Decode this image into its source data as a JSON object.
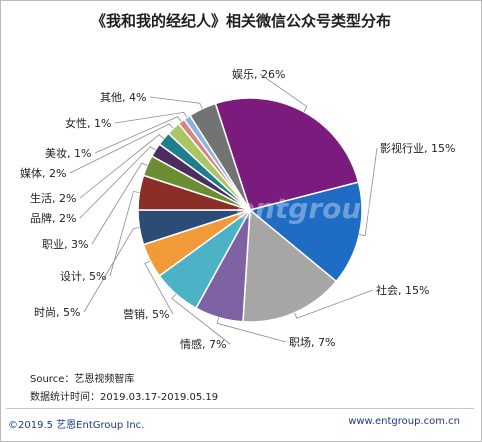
{
  "chart_data": {
    "type": "pie",
    "title": "《我和我的经纪人》相关微信公众号类型分布",
    "slices": [
      {
        "label": "娱乐",
        "value": 26,
        "display": "娱乐, 26%",
        "color": "#7b1b7e"
      },
      {
        "label": "影视行业",
        "value": 15,
        "display": "影视行业, 15%",
        "color": "#1f6cc4"
      },
      {
        "label": "社会",
        "value": 15,
        "display": "社会, 15%",
        "color": "#a6a6a6"
      },
      {
        "label": "职场",
        "value": 7,
        "display": "职场, 7%",
        "color": "#7e62a4"
      },
      {
        "label": "情感",
        "value": 7,
        "display": "情感, 7%",
        "color": "#4cb2c5"
      },
      {
        "label": "营销",
        "value": 5,
        "display": "营销, 5%",
        "color": "#f19a38"
      },
      {
        "label": "时尚",
        "value": 5,
        "display": "时尚, 5%",
        "color": "#2a4c76"
      },
      {
        "label": "设计",
        "value": 5,
        "display": "设计, 5%",
        "color": "#8a2e27"
      },
      {
        "label": "职业",
        "value": 3,
        "display": "职业, 3%",
        "color": "#6b8e34"
      },
      {
        "label": "品牌",
        "value": 2,
        "display": "品牌, 2%",
        "color": "#4b2d62"
      },
      {
        "label": "生活",
        "value": 2,
        "display": "生活, 2%",
        "color": "#1f7e8c"
      },
      {
        "label": "媒体",
        "value": 2,
        "display": "媒体, 2%",
        "color": "#a9c864"
      },
      {
        "label": "美妆",
        "value": 1,
        "display": "美妆, 1%",
        "color": "#d9857f"
      },
      {
        "label": "女性",
        "value": 1,
        "display": "女性, 1%",
        "color": "#8eb2de"
      },
      {
        "label": "其他",
        "value": 4,
        "display": "其他, 4%",
        "color": "#737373"
      }
    ]
  },
  "source": {
    "line1": "Source：艺恩视频智库",
    "line2": "数据统计时间：2019.03.17-2019.05.19"
  },
  "footer": {
    "left": "©2019.5 艺恩EntGroup Inc.",
    "right": "www.entgroup.com.cn"
  },
  "watermark": "entgroup"
}
